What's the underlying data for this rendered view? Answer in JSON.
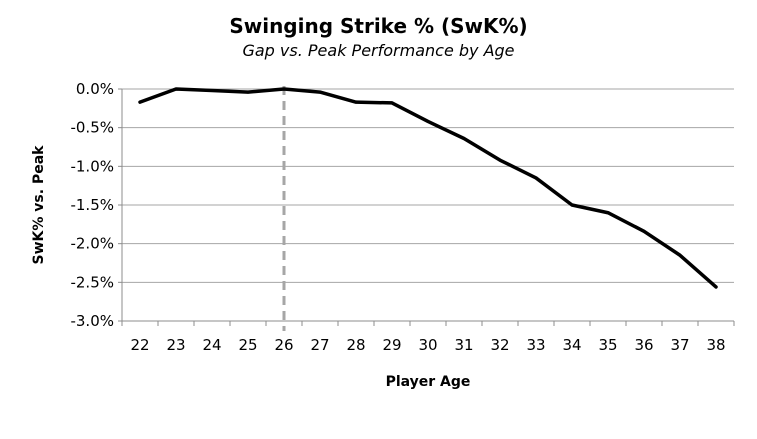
{
  "chart_data": {
    "type": "line",
    "title": "Swinging Strike % (SwK%)",
    "subtitle": "Gap vs. Peak Performance by Age",
    "xlabel": "Player Age",
    "ylabel": "SwK% vs. Peak",
    "x": [
      22,
      23,
      24,
      25,
      26,
      27,
      28,
      29,
      30,
      31,
      32,
      33,
      34,
      35,
      36,
      37,
      38
    ],
    "x_tick_labels": [
      "22",
      "23",
      "24",
      "25",
      "26",
      "27",
      "28",
      "29",
      "30",
      "31",
      "32",
      "33",
      "34",
      "35",
      "36",
      "37",
      "38"
    ],
    "series": [
      {
        "values": [
          -0.17,
          0.0,
          -0.02,
          -0.04,
          0.0,
          -0.04,
          -0.17,
          -0.18,
          -0.42,
          -0.64,
          -0.92,
          -1.15,
          -1.5,
          -1.6,
          -1.84,
          -2.15,
          -2.56
        ],
        "color": "#000000"
      }
    ],
    "y_ticks": [
      0.0,
      -0.5,
      -1.0,
      -1.5,
      -2.0,
      -2.5,
      -3.0
    ],
    "y_tick_labels": [
      "0.0%",
      "-0.5%",
      "-1.0%",
      "-1.5%",
      "-2.0%",
      "-2.5%",
      "-3.0%"
    ],
    "ylim": [
      -3.0,
      0.0
    ],
    "grid": true,
    "gridline_color": "#a6a6a6",
    "reference_line": {
      "x": 26,
      "style": "dashed",
      "color": "#a6a6a6"
    },
    "legend": false
  }
}
